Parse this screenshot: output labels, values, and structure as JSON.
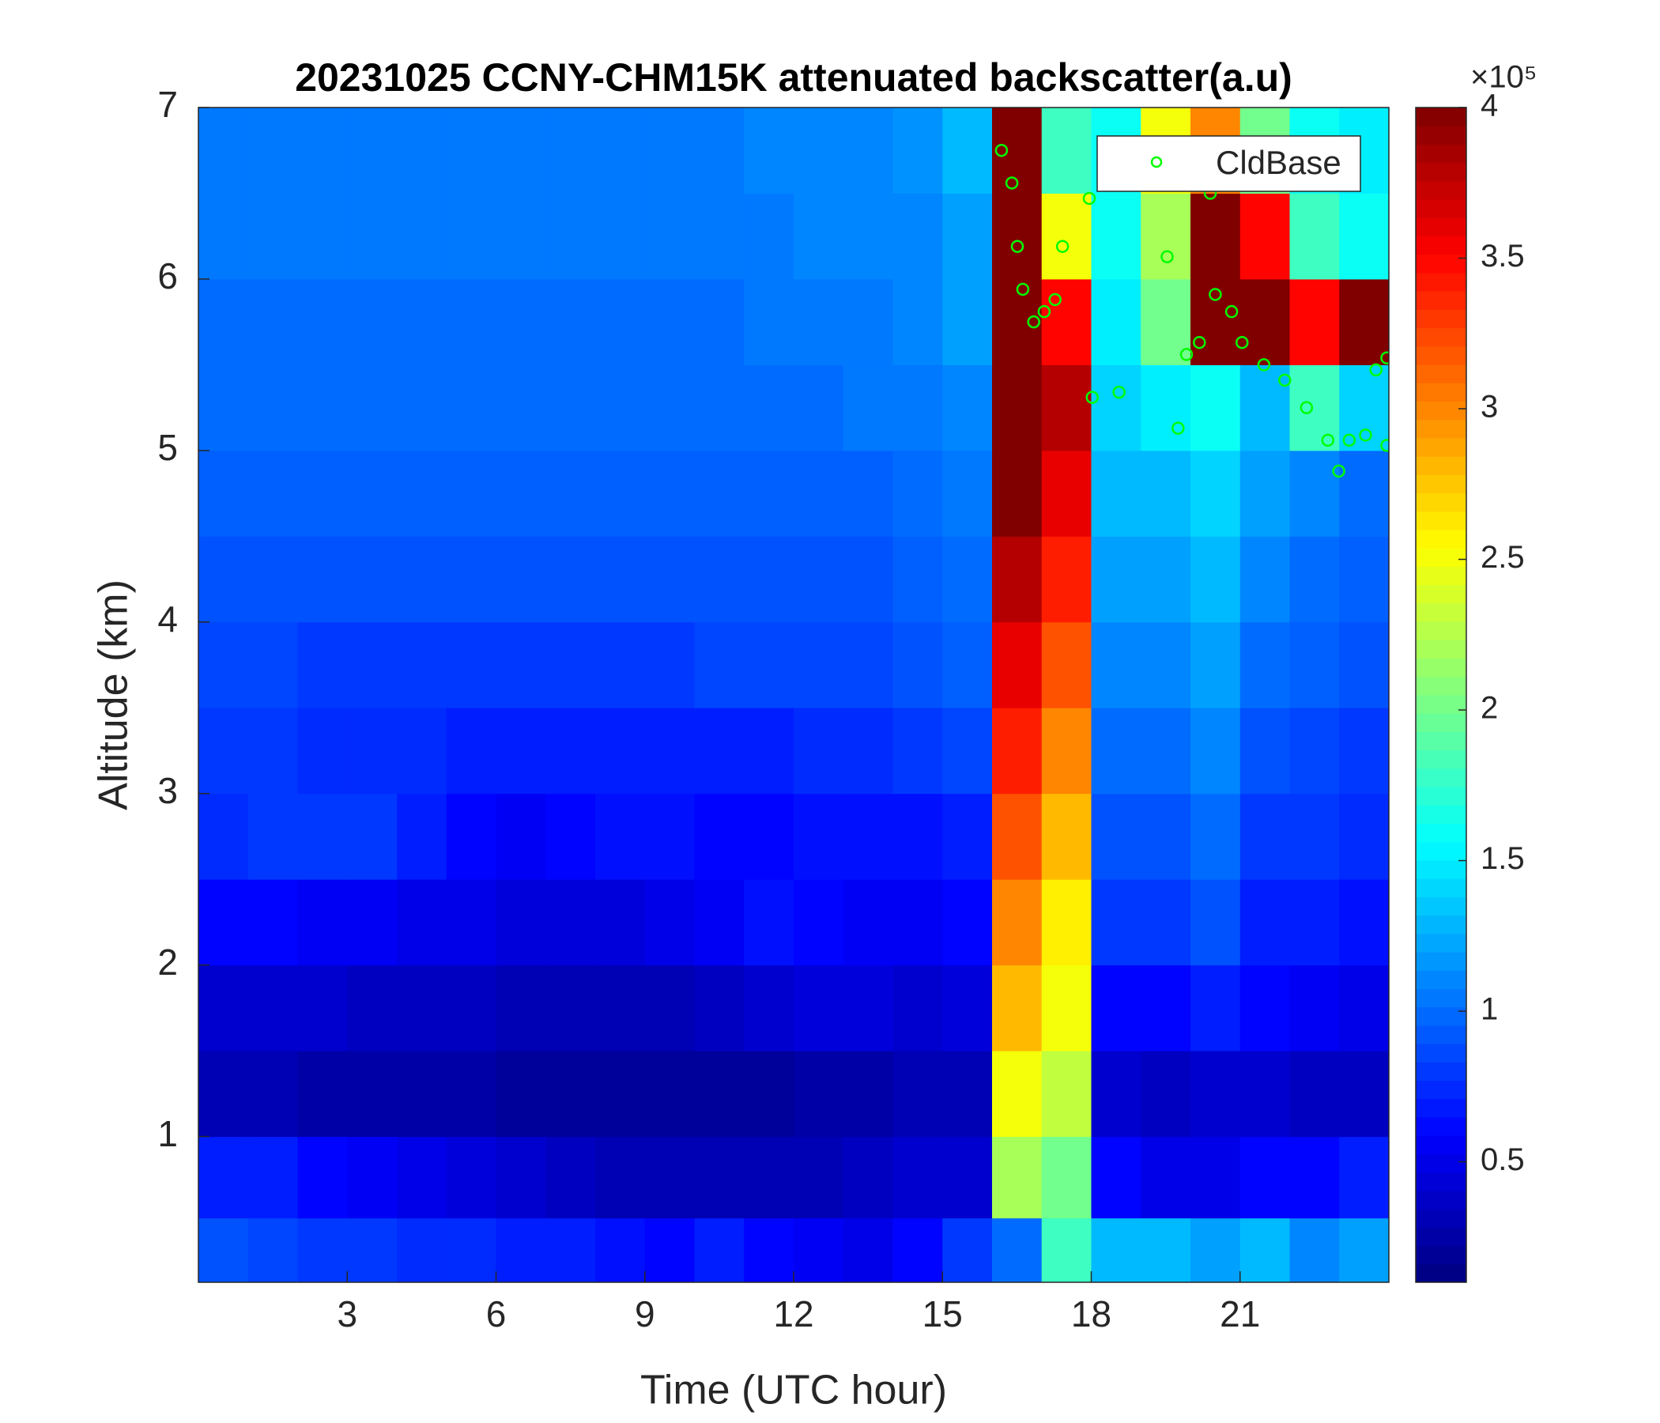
{
  "chart_data": {
    "type": "heatmap",
    "title": "20231025 CCNY-CHM15K attenuated backscatter(a.u)",
    "x_label": "Time (UTC hour)",
    "y_label": "Altitude (km)",
    "xlim": [
      0,
      24
    ],
    "xticks": [
      3,
      6,
      9,
      12,
      15,
      18,
      21
    ],
    "ylim": [
      0.15,
      7
    ],
    "yticks": [
      1,
      2,
      3,
      4,
      5,
      6,
      7
    ],
    "colormap": "jet",
    "clim": [
      0.1,
      4
    ],
    "cticks": [
      0.5,
      1,
      1.5,
      2,
      2.5,
      3,
      3.5,
      4
    ],
    "colorbar_exponent": "×10⁵",
    "x": [
      0.5,
      1.5,
      2.5,
      3.5,
      4.5,
      5.5,
      6.5,
      7.5,
      8.5,
      9.5,
      10.5,
      11.5,
      12.5,
      13.5,
      14.5,
      15.5,
      16.5,
      17.5,
      18.5,
      19.5,
      20.5,
      21.5,
      22.5,
      23.5
    ],
    "y": [
      0.3,
      0.75,
      1.25,
      1.75,
      2.25,
      2.75,
      3.25,
      3.75,
      4.25,
      4.75,
      5.25,
      5.75,
      6.25,
      6.75
    ],
    "z": [
      [
        0.9,
        0.85,
        0.8,
        0.8,
        0.75,
        0.75,
        0.7,
        0.7,
        0.65,
        0.6,
        0.7,
        0.6,
        0.55,
        0.5,
        0.6,
        0.8,
        1.0,
        1.8,
        1.3,
        1.3,
        1.2,
        1.3,
        1.1,
        1.2
      ],
      [
        0.7,
        0.7,
        0.6,
        0.55,
        0.5,
        0.45,
        0.4,
        0.35,
        0.3,
        0.3,
        0.3,
        0.3,
        0.3,
        0.35,
        0.4,
        0.4,
        2.2,
        2.0,
        0.6,
        0.5,
        0.5,
        0.6,
        0.6,
        0.7
      ],
      [
        0.3,
        0.3,
        0.25,
        0.25,
        0.25,
        0.25,
        0.2,
        0.2,
        0.2,
        0.2,
        0.2,
        0.2,
        0.25,
        0.25,
        0.3,
        0.3,
        2.5,
        2.3,
        0.4,
        0.35,
        0.4,
        0.4,
        0.35,
        0.35
      ],
      [
        0.4,
        0.4,
        0.4,
        0.35,
        0.35,
        0.35,
        0.3,
        0.3,
        0.3,
        0.3,
        0.35,
        0.4,
        0.45,
        0.45,
        0.4,
        0.45,
        2.8,
        2.5,
        0.6,
        0.6,
        0.7,
        0.6,
        0.55,
        0.5
      ],
      [
        0.6,
        0.6,
        0.55,
        0.55,
        0.5,
        0.5,
        0.45,
        0.45,
        0.45,
        0.5,
        0.55,
        0.65,
        0.6,
        0.55,
        0.55,
        0.6,
        3.0,
        2.6,
        0.8,
        0.8,
        0.9,
        0.7,
        0.7,
        0.65
      ],
      [
        0.75,
        0.8,
        0.8,
        0.8,
        0.7,
        0.6,
        0.55,
        0.6,
        0.65,
        0.65,
        0.6,
        0.6,
        0.65,
        0.65,
        0.65,
        0.7,
        3.2,
        2.8,
        0.9,
        0.9,
        1.0,
        0.8,
        0.8,
        0.75
      ],
      [
        0.8,
        0.8,
        0.75,
        0.75,
        0.75,
        0.7,
        0.7,
        0.7,
        0.7,
        0.7,
        0.7,
        0.7,
        0.75,
        0.75,
        0.8,
        0.85,
        3.4,
        3.0,
        1.0,
        1.0,
        1.1,
        0.9,
        0.85,
        0.8
      ],
      [
        0.85,
        0.85,
        0.8,
        0.8,
        0.8,
        0.8,
        0.8,
        0.8,
        0.8,
        0.8,
        0.85,
        0.85,
        0.85,
        0.85,
        0.9,
        0.95,
        3.6,
        3.2,
        1.1,
        1.1,
        1.2,
        1.0,
        0.95,
        0.9
      ],
      [
        0.9,
        0.9,
        0.9,
        0.9,
        0.9,
        0.9,
        0.9,
        0.9,
        0.9,
        0.9,
        0.9,
        0.9,
        0.9,
        0.9,
        0.95,
        1.0,
        3.8,
        3.4,
        1.2,
        1.2,
        1.3,
        1.1,
        1.0,
        0.95
      ],
      [
        0.95,
        0.95,
        0.95,
        0.95,
        0.95,
        0.95,
        0.95,
        0.95,
        0.95,
        0.95,
        0.95,
        0.95,
        0.95,
        0.95,
        1.0,
        1.05,
        4,
        3.6,
        1.3,
        1.3,
        1.4,
        1.2,
        1.1,
        1.0
      ],
      [
        1.0,
        1.0,
        1.0,
        1.0,
        1.0,
        1.0,
        1.0,
        1.0,
        1.0,
        1.0,
        1.0,
        1.0,
        1.0,
        1.05,
        1.05,
        1.1,
        4,
        3.8,
        1.4,
        1.5,
        1.6,
        1.3,
        1.8,
        1.4
      ],
      [
        1.0,
        1.0,
        1.0,
        1.0,
        1.0,
        1.0,
        1.0,
        1.0,
        1.0,
        1.0,
        1.0,
        1.05,
        1.05,
        1.05,
        1.1,
        1.2,
        4,
        3.5,
        1.5,
        2.0,
        4,
        4,
        3.5,
        4
      ],
      [
        1.05,
        1.05,
        1.05,
        1.05,
        1.05,
        1.05,
        1.05,
        1.05,
        1.05,
        1.05,
        1.05,
        1.05,
        1.1,
        1.1,
        1.1,
        1.2,
        4,
        2.5,
        1.6,
        2.2,
        4,
        3.5,
        1.8,
        1.6
      ],
      [
        1.05,
        1.05,
        1.05,
        1.05,
        1.05,
        1.05,
        1.05,
        1.05,
        1.05,
        1.05,
        1.05,
        1.1,
        1.1,
        1.1,
        1.15,
        1.3,
        4,
        1.8,
        1.6,
        2.5,
        3.0,
        2.0,
        1.6,
        1.5
      ]
    ],
    "overlay": {
      "type": "scatter",
      "name": "CldBase",
      "color": "#00ff00",
      "x": [
        16.19,
        16.4,
        16.51,
        16.62,
        16.84,
        17.05,
        17.27,
        17.42,
        17.96,
        18.02,
        18.56,
        19.53,
        19.75,
        19.92,
        20.18,
        20.4,
        20.5,
        20.83,
        21.04,
        21.48,
        21.9,
        22.34,
        22.77,
        22.99,
        23.2,
        23.53,
        23.74,
        23.96,
        23.96
      ],
      "y": [
        6.75,
        6.56,
        6.19,
        5.94,
        5.75,
        5.81,
        5.88,
        6.19,
        6.47,
        5.31,
        5.34,
        6.13,
        5.13,
        5.56,
        5.63,
        6.5,
        5.91,
        5.81,
        5.63,
        5.5,
        5.41,
        5.25,
        5.06,
        4.88,
        5.06,
        5.09,
        5.47,
        5.03,
        5.54
      ]
    },
    "legend": "upper right"
  }
}
